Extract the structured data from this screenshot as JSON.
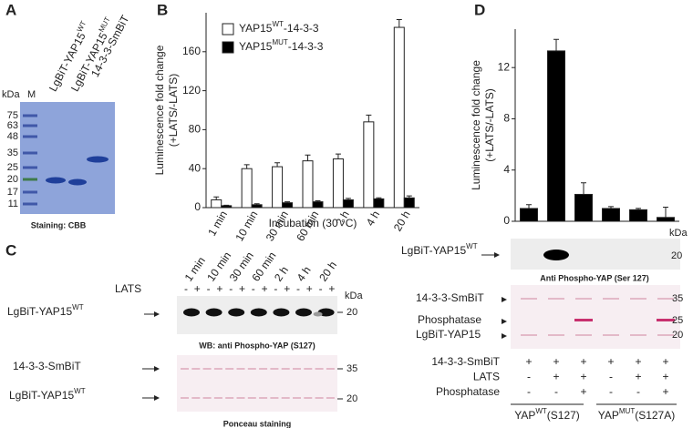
{
  "panel_a": {
    "label": "A",
    "kda": "kDa",
    "marker_lane": "M",
    "markers": [
      "75",
      "63",
      "48",
      "35",
      "25",
      "20",
      "17",
      "11"
    ],
    "lanes": [
      [
        "LgBiT-YAP15",
        "WT"
      ],
      [
        "LgBiT-YAP15",
        "MUT"
      ],
      "14-3-3-SmBiT"
    ],
    "caption": "Staining: CBB"
  },
  "chart_data": [
    {
      "type": "bar",
      "panel_label": "B",
      "y_label": [
        "Luminescence fold change",
        "(+LATS/-LATS)"
      ],
      "x_label": "Incubation (30 °C)",
      "categories": [
        "1 min",
        "10 min",
        "30 min",
        "60 min",
        "2 h",
        "4 h",
        "20 h"
      ],
      "series": [
        {
          "name": [
            "YAP15",
            "WT",
            "-14-3-3"
          ],
          "color": "#ffffff",
          "values": [
            8,
            40,
            42,
            48,
            50,
            88,
            185
          ],
          "errors": [
            3,
            4,
            4,
            6,
            5,
            7,
            8
          ]
        },
        {
          "name": [
            "YAP15",
            "MUT",
            "-14-3-3"
          ],
          "color": "#000000",
          "values": [
            2,
            3,
            5,
            6,
            8,
            9,
            10
          ],
          "errors": [
            0.5,
            1,
            1,
            1,
            1.5,
            1,
            2
          ]
        }
      ],
      "ylim": [
        0,
        200
      ],
      "yticks": [
        0,
        40,
        80,
        120,
        160
      ],
      "legend": "upper left"
    },
    {
      "type": "bar",
      "panel_label": "D",
      "y_label": [
        "Luminescence fold change",
        "(+LATS/-LATS)"
      ],
      "categories": [
        null,
        null,
        null,
        null,
        null,
        null
      ],
      "series": [
        {
          "color": "#000000",
          "values": [
            1.0,
            13.3,
            2.1,
            1.0,
            0.9,
            0.3
          ],
          "errors": [
            0.3,
            0.9,
            0.9,
            0.15,
            0.1,
            0.8
          ]
        }
      ],
      "ylim": [
        0,
        15
      ],
      "yticks": [
        0,
        4,
        8,
        12
      ]
    }
  ],
  "panel_c": {
    "label": "C",
    "times": [
      "1 min",
      "10 min",
      "30 min",
      "60 min",
      "2 h",
      "4 h",
      "20 h"
    ],
    "treatment": "LATS",
    "signs": [
      "-",
      "+",
      "-",
      "+",
      "-",
      "+",
      "-",
      "+",
      "-",
      "+",
      "-",
      "+",
      "-",
      "+"
    ],
    "kda": "kDa",
    "blot1_markers": [
      "20"
    ],
    "blot1_band": [
      "LgBiT-YAP15",
      "WT"
    ],
    "blot1_caption": "WB: anti Phospho-YAP (S127)",
    "blot2_bands": [
      "14-3-3-SmBiT",
      [
        "LgBiT-YAP15",
        "WT"
      ]
    ],
    "blot2_markers": [
      "35",
      "20"
    ],
    "blot2_caption": "Ponceau staining"
  },
  "panel_d": {
    "blot1_band": [
      "LgBiT-YAP15",
      "WT"
    ],
    "kda": "kDa",
    "blot1_markers": [
      "20"
    ],
    "blot1_caption": "Anti Phospho-YAP (Ser 127)",
    "blot2_bands": [
      "14-3-3-SmBiT",
      "Phosphatase",
      "LgBiT-YAP15"
    ],
    "blot2_markers": [
      "35",
      "25",
      "20"
    ],
    "rows": [
      {
        "label": "14-3-3-SmBiT",
        "signs": [
          "+",
          "+",
          "+",
          "+",
          "+",
          "+"
        ]
      },
      {
        "label": "LATS",
        "signs": [
          "-",
          "+",
          "+",
          "-",
          "+",
          "+"
        ]
      },
      {
        "label": "Phosphatase",
        "signs": [
          "-",
          "-",
          "+",
          "-",
          "-",
          "+"
        ]
      }
    ],
    "groups": [
      [
        "YAP",
        "WT",
        "(S127)"
      ],
      [
        "YAP",
        "MUT",
        "(S127A)"
      ]
    ]
  }
}
